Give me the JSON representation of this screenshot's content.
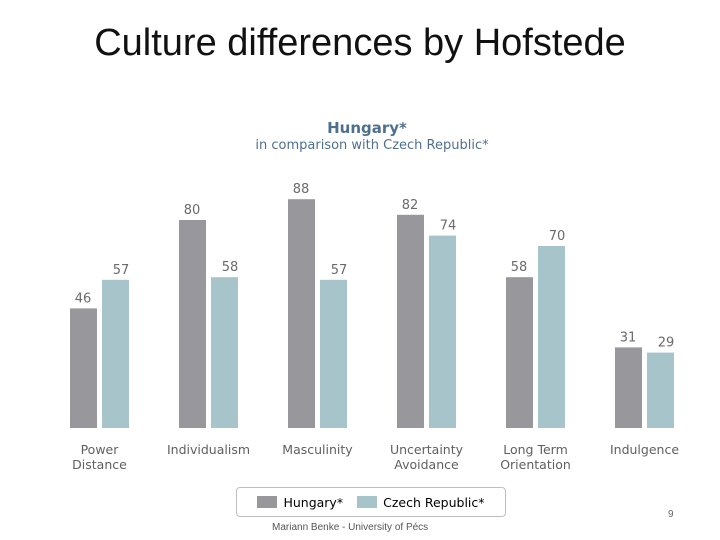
{
  "slide": {
    "title": "Culture differences by Hofstede",
    "footer": "Mariann Benke - University of Pécs",
    "page_number": "9"
  },
  "chart_data": {
    "type": "bar",
    "title": "Hungary*",
    "subtitle": "in comparison with Czech Republic*",
    "categories": [
      [
        "Power",
        "Distance"
      ],
      [
        "Individualism"
      ],
      [
        "Masculinity"
      ],
      [
        "Uncertainty",
        "Avoidance"
      ],
      [
        "Long Term",
        "Orientation"
      ],
      [
        "Indulgence"
      ]
    ],
    "series": [
      {
        "name": "Hungary*",
        "values": [
          46,
          80,
          88,
          82,
          58,
          31
        ],
        "color": "#98979b"
      },
      {
        "name": "Czech Republic*",
        "values": [
          57,
          58,
          57,
          74,
          70,
          29
        ],
        "color": "#a7c4cb"
      }
    ],
    "ylim": [
      0,
      100
    ],
    "grid": false,
    "legend_position": "bottom",
    "colors": {
      "title": "#4f6f8f",
      "labels": "#6b6b6b",
      "category_labels": "#5f5f5f"
    }
  }
}
